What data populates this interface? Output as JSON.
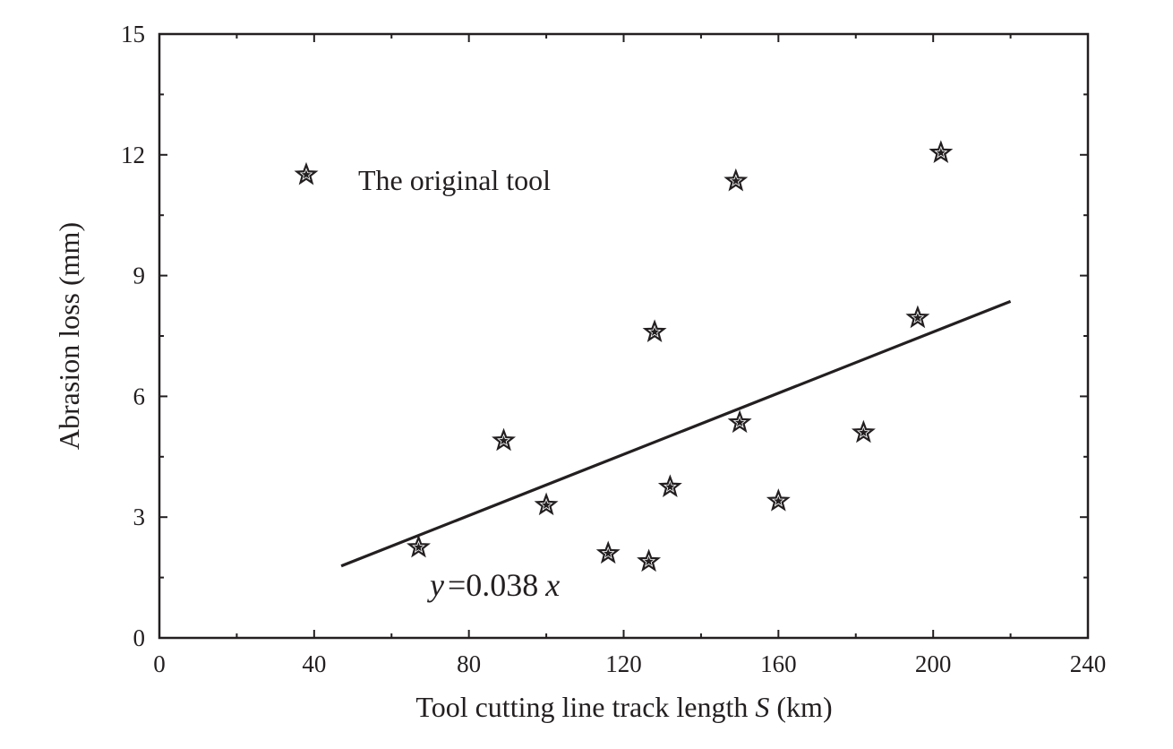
{
  "chart_data": {
    "type": "scatter",
    "title": "",
    "xlabel": "Tool cutting line track length",
    "xlabel_var": "S",
    "xlabel_unit": "(km)",
    "ylabel": "Abrasion loss (mm)",
    "xlim": [
      0,
      240
    ],
    "ylim": [
      0,
      15
    ],
    "xticks": [
      "0",
      "40",
      "80",
      "120",
      "160",
      "200",
      "240"
    ],
    "yticks": [
      "0",
      "3",
      "6",
      "9",
      "12",
      "15"
    ],
    "grid": false,
    "legend": {
      "placement": "top-left",
      "entries": [
        "The original tool"
      ]
    },
    "series": [
      {
        "name": "The original tool",
        "marker": "star",
        "color": "#231f20",
        "x": [
          67,
          89,
          100,
          116,
          126.5,
          128,
          132,
          149,
          150,
          160,
          182,
          196,
          202
        ],
        "y": [
          2.25,
          4.9,
          3.3,
          2.1,
          1.9,
          7.6,
          3.75,
          11.35,
          5.35,
          3.4,
          5.1,
          7.95,
          12.05
        ]
      }
    ],
    "fit": {
      "slope": 0.038,
      "x_range": [
        47,
        220
      ],
      "equation": {
        "y": "y",
        "eq": "=0.038",
        "x": "x"
      }
    }
  }
}
